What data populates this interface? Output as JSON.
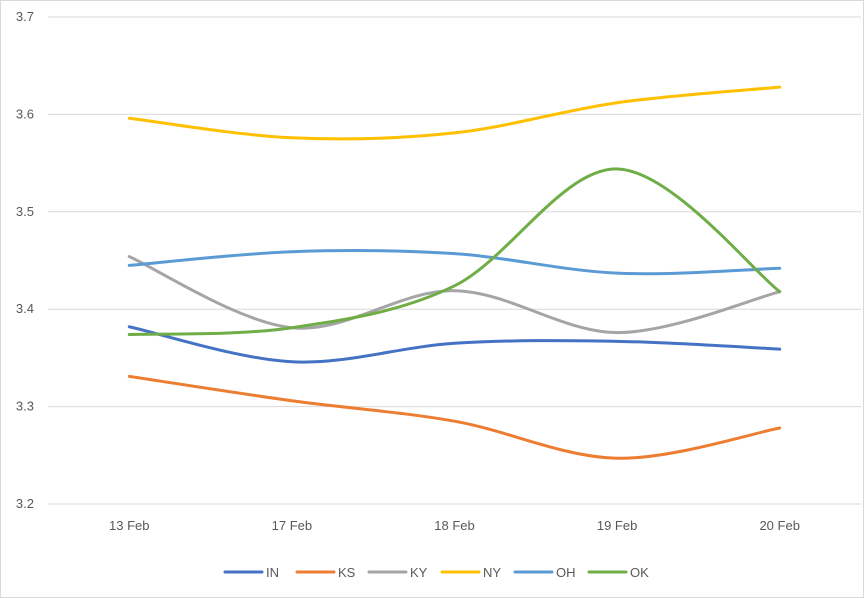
{
  "chart_data": {
    "type": "line",
    "smooth": true,
    "title": "",
    "xlabel": "",
    "ylabel": "",
    "categories": [
      "13 Feb",
      "17 Feb",
      "18 Feb",
      "19 Feb",
      "20 Feb"
    ],
    "ylim": [
      3.2,
      3.7
    ],
    "yticks": [
      "3.2",
      "3.3",
      "3.4",
      "3.5",
      "3.6",
      "3.7"
    ],
    "grid": true,
    "legend_position": "bottom",
    "series": [
      {
        "name": "IN",
        "color": "#4472c4",
        "values": [
          3.382,
          3.346,
          3.365,
          3.367,
          3.359
        ]
      },
      {
        "name": "KS",
        "color": "#ed7d31",
        "values": [
          3.331,
          3.306,
          3.285,
          3.247,
          3.278
        ]
      },
      {
        "name": "KY",
        "color": "#a5a5a5",
        "values": [
          3.454,
          3.381,
          3.419,
          3.376,
          3.418
        ]
      },
      {
        "name": "NY",
        "color": "#ffc000",
        "values": [
          3.596,
          3.576,
          3.581,
          3.612,
          3.628
        ]
      },
      {
        "name": "OH",
        "color": "#5b9bd5",
        "values": [
          3.445,
          3.459,
          3.457,
          3.437,
          3.442
        ]
      },
      {
        "name": "OK",
        "color": "#70ad47",
        "values": [
          3.374,
          3.381,
          3.424,
          3.544,
          3.418
        ]
      }
    ]
  }
}
